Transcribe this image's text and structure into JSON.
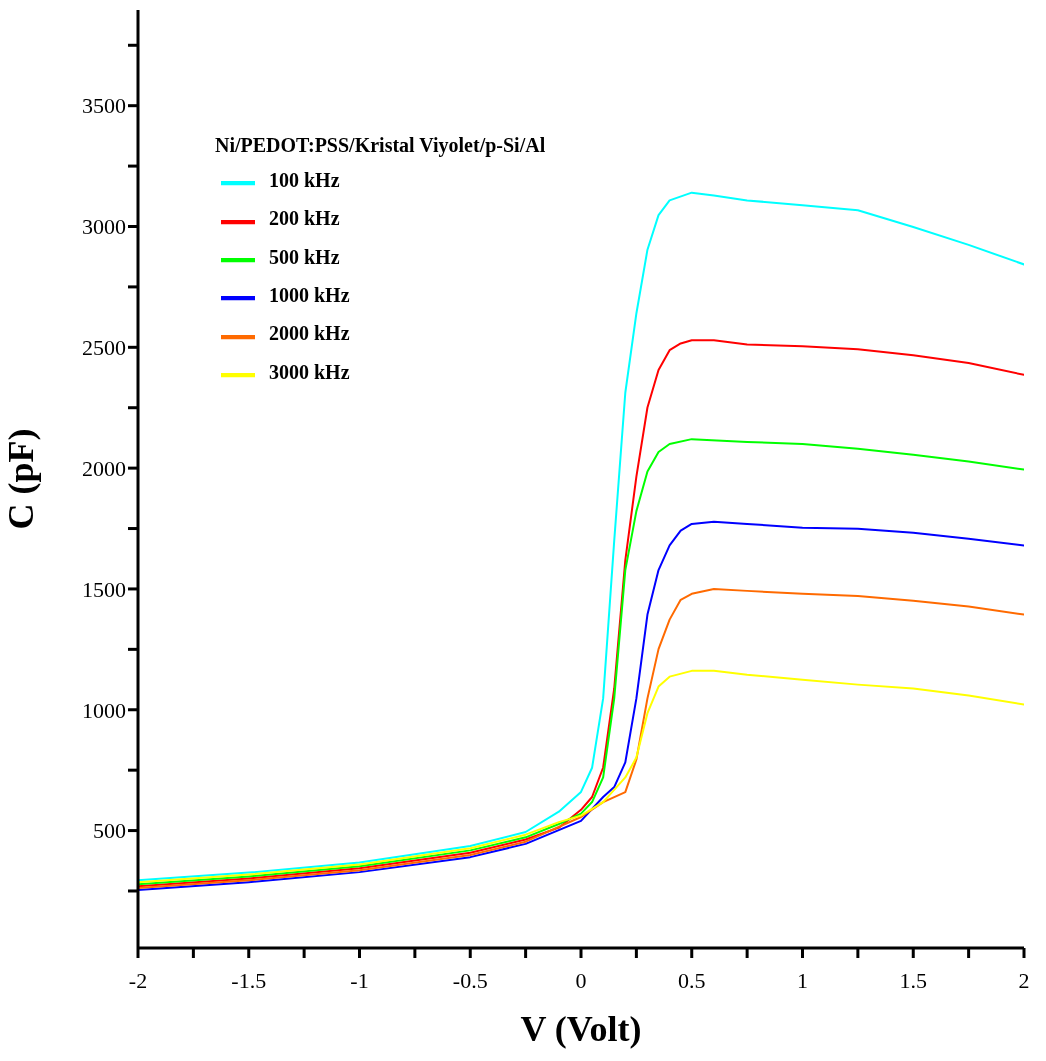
{
  "chart_data": {
    "type": "line",
    "xlabel": "V (Volt)",
    "ylabel": "C (pF)",
    "legend_title": "Ni/PEDOT:PSS/Kristal Viyolet/p-Si/Al",
    "legend": "top left",
    "grid": false,
    "marker": "none",
    "line_style": "solid",
    "xlim": [
      -2,
      2
    ],
    "ylim": [
      14,
      3896
    ],
    "xticks": [
      -2,
      {
        "value": -1.75,
        "label": null
      },
      -1.5,
      {
        "value": -1.25,
        "label": null
      },
      -1,
      {
        "value": -0.75,
        "label": null
      },
      -0.5,
      {
        "value": -0.25,
        "label": null
      },
      0,
      {
        "value": 0.25,
        "label": null
      },
      0.5,
      {
        "value": 0.75,
        "label": null
      },
      1,
      {
        "value": 1.25,
        "label": null
      },
      1.5,
      {
        "value": 1.75,
        "label": null
      },
      2
    ],
    "yticks": [
      {
        "value": 250,
        "label": null
      },
      500,
      {
        "value": 750,
        "label": null
      },
      1000,
      {
        "value": 1250,
        "label": null
      },
      1500,
      {
        "value": 1750,
        "label": null
      },
      2000,
      {
        "value": 2250,
        "label": null
      },
      2500,
      {
        "value": 2750,
        "label": null
      },
      3000,
      {
        "value": 3250,
        "label": null
      },
      3500,
      {
        "value": 3750,
        "label": null
      }
    ],
    "series": [
      {
        "name": "100 kHz",
        "color": "#00ffff",
        "x": [
          -2,
          -1.5,
          -1,
          -0.5,
          -0.25,
          -0.1,
          0,
          0.05,
          0.1,
          0.15,
          0.2,
          0.25,
          0.3,
          0.35,
          0.4,
          0.5,
          0.6,
          0.75,
          1,
          1.25,
          1.5,
          1.75,
          2
        ],
        "values": [
          294,
          326,
          368,
          436,
          494,
          578,
          660,
          760,
          1047,
          1700,
          2312,
          2640,
          2904,
          3047,
          3108,
          3140,
          3128,
          3108,
          3088,
          3067,
          2998,
          2924,
          2843
        ]
      },
      {
        "name": "200 kHz",
        "color": "#ff0000",
        "x": [
          -2,
          -1.5,
          -1,
          -0.5,
          -0.25,
          -0.1,
          0,
          0.05,
          0.1,
          0.15,
          0.2,
          0.25,
          0.3,
          0.35,
          0.4,
          0.45,
          0.5,
          0.6,
          0.75,
          1,
          1.25,
          1.5,
          1.75,
          2
        ],
        "values": [
          270,
          302,
          344,
          408,
          463,
          512,
          586,
          639,
          761,
          1088,
          1618,
          1965,
          2251,
          2406,
          2488,
          2516,
          2529,
          2529,
          2512,
          2504,
          2492,
          2467,
          2435,
          2386
        ]
      },
      {
        "name": "500 kHz",
        "color": "#00ff00",
        "x": [
          -2,
          -1.5,
          -1,
          -0.5,
          -0.25,
          -0.1,
          0,
          0.05,
          0.1,
          0.15,
          0.2,
          0.25,
          0.3,
          0.35,
          0.4,
          0.5,
          0.75,
          1,
          1.25,
          1.5,
          1.75,
          2
        ],
        "values": [
          278,
          310,
          352,
          418,
          472,
          527,
          570,
          618,
          720,
          1047,
          1578,
          1822,
          1986,
          2067,
          2100,
          2120,
          2108,
          2100,
          2080,
          2055,
          2027,
          1994
        ]
      },
      {
        "name": "1000 kHz",
        "color": "#0000ff",
        "x": [
          -2,
          -1.5,
          -1,
          -0.5,
          -0.25,
          0,
          0.1,
          0.15,
          0.2,
          0.25,
          0.3,
          0.35,
          0.4,
          0.45,
          0.5,
          0.6,
          0.75,
          1,
          1.25,
          1.5,
          1.75,
          2
        ],
        "values": [
          254,
          286,
          328,
          390,
          445,
          540,
          639,
          680,
          782,
          1047,
          1394,
          1578,
          1680,
          1741,
          1769,
          1778,
          1769,
          1753,
          1749,
          1733,
          1708,
          1680
        ]
      },
      {
        "name": "2000 kHz",
        "color": "#ff6a00",
        "x": [
          -2,
          -1.5,
          -1,
          -0.5,
          -0.25,
          0,
          0.1,
          0.2,
          0.25,
          0.3,
          0.35,
          0.4,
          0.45,
          0.5,
          0.6,
          0.75,
          1,
          1.25,
          1.5,
          1.75,
          2
        ],
        "values": [
          262,
          294,
          336,
          399,
          454,
          556,
          618,
          659,
          794,
          1047,
          1251,
          1373,
          1455,
          1480,
          1500,
          1492,
          1480,
          1471,
          1451,
          1427,
          1394
        ]
      },
      {
        "name": "3000 kHz",
        "color": "#ffff00",
        "x": [
          -2,
          -1.5,
          -1,
          -0.5,
          -0.25,
          -0.1,
          0,
          0.1,
          0.2,
          0.25,
          0.3,
          0.35,
          0.4,
          0.5,
          0.6,
          0.75,
          1,
          1.25,
          1.5,
          1.75,
          2
        ],
        "values": [
          286,
          318,
          360,
          427,
          483,
          535,
          562,
          618,
          720,
          802,
          986,
          1096,
          1137,
          1161,
          1161,
          1145,
          1124,
          1104,
          1088,
          1059,
          1022
        ]
      }
    ]
  }
}
